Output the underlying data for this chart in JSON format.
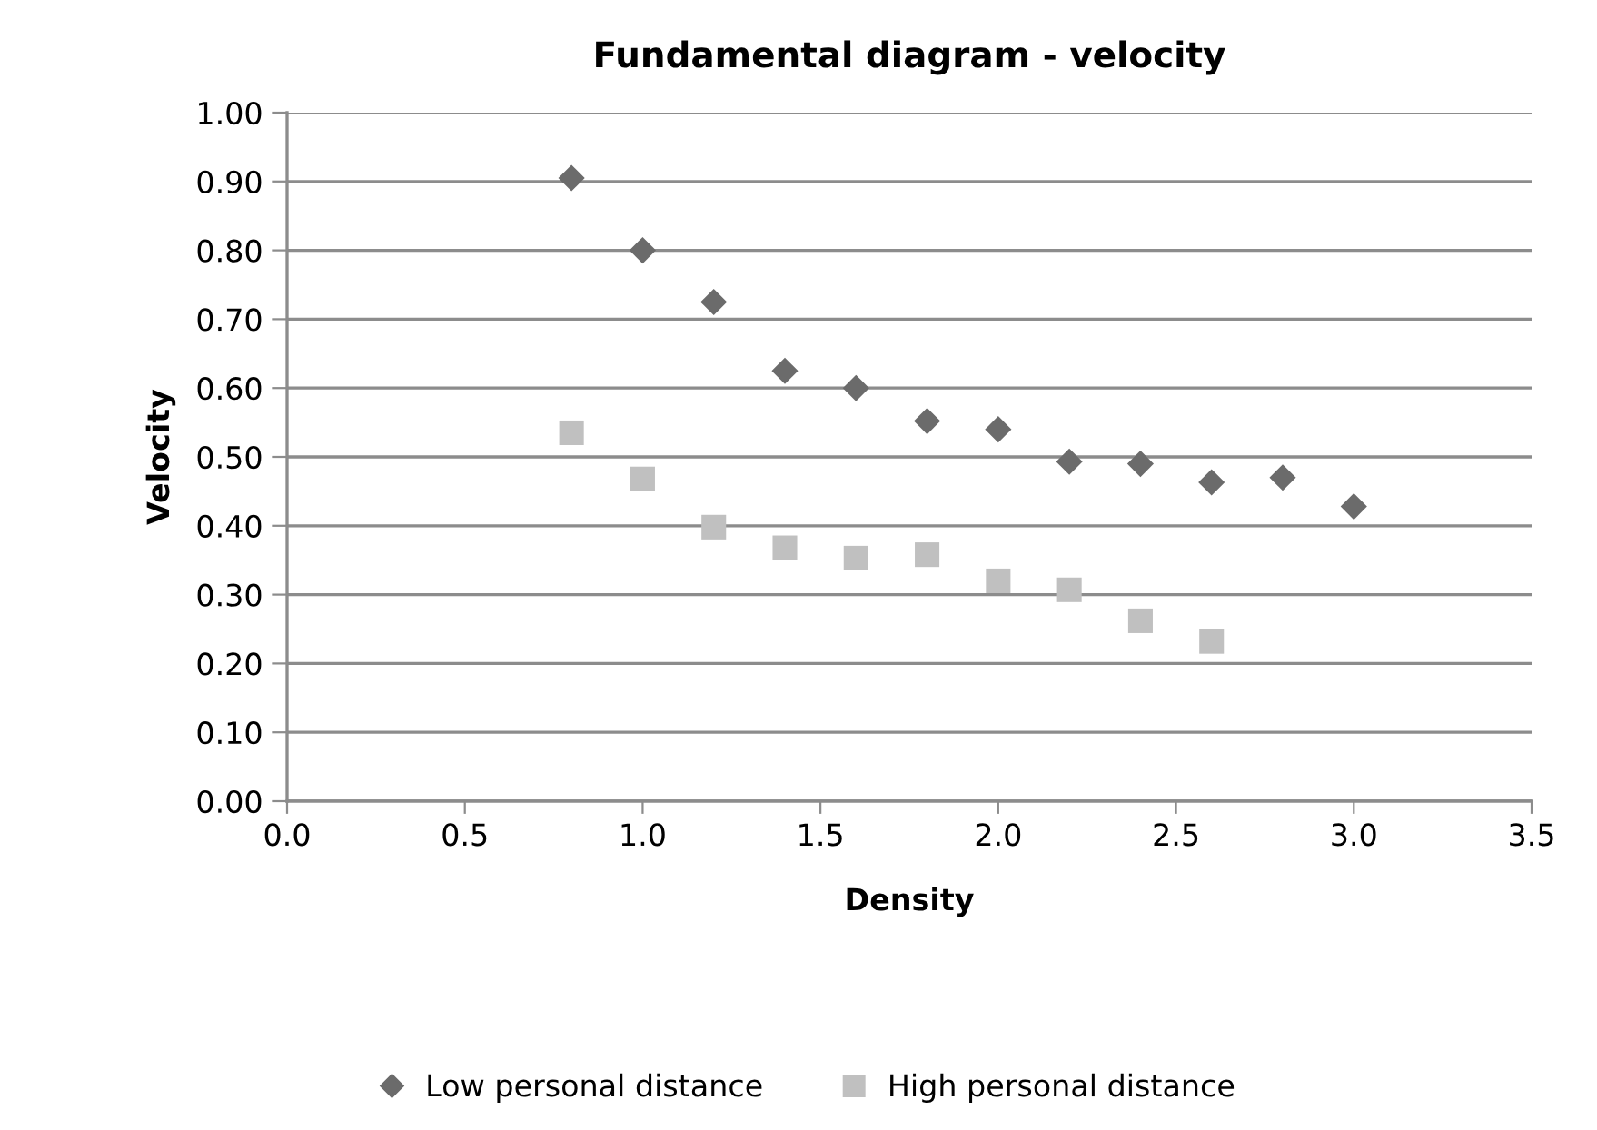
{
  "chart_data": {
    "type": "scatter",
    "title": "Fundamental diagram - velocity",
    "xlabel": "Density",
    "ylabel": "Velocity",
    "series": [
      {
        "name": "Low personal distance",
        "color": "#6b6b6b",
        "marker": "diamond",
        "x": [
          0.8,
          1.0,
          1.2,
          1.4,
          1.6,
          1.8,
          2.0,
          2.2,
          2.4,
          2.6,
          2.8,
          3.0
        ],
        "values": [
          0.905,
          0.8,
          0.725,
          0.625,
          0.6,
          0.552,
          0.54,
          0.493,
          0.49,
          0.463,
          0.47,
          0.428
        ]
      },
      {
        "name": "High personal distance",
        "color": "#c0c0c0",
        "marker": "square",
        "x": [
          0.8,
          1.0,
          1.2,
          1.4,
          1.6,
          1.8,
          2.0,
          2.2,
          2.4,
          2.6
        ],
        "values": [
          0.535,
          0.468,
          0.398,
          0.368,
          0.353,
          0.358,
          0.32,
          0.307,
          0.262,
          0.232
        ]
      }
    ],
    "xlim": [
      0,
      3.5
    ],
    "xticks": [
      {
        "value": 0,
        "label": "0.0"
      },
      0.5,
      {
        "value": 1,
        "label": "1.0"
      },
      1.5,
      {
        "value": 2,
        "label": "2.0"
      },
      2.5,
      {
        "value": 3,
        "label": "3.0"
      },
      3.5
    ],
    "ylim": [
      0,
      1
    ],
    "yticks": [
      {
        "value": 0,
        "label": "0.00"
      },
      {
        "value": 0.1,
        "label": "0.10"
      },
      {
        "value": 0.2,
        "label": "0.20"
      },
      {
        "value": 0.3,
        "label": "0.30"
      },
      {
        "value": 0.4,
        "label": "0.40"
      },
      {
        "value": 0.5,
        "label": "0.50"
      },
      {
        "value": 0.6,
        "label": "0.60"
      },
      {
        "value": 0.7,
        "label": "0.70"
      },
      {
        "value": 0.8,
        "label": "0.80"
      },
      {
        "value": 0.9,
        "label": "0.90"
      },
      {
        "value": 1,
        "label": "1.00"
      }
    ],
    "grid": "y",
    "legend": "bottom"
  }
}
